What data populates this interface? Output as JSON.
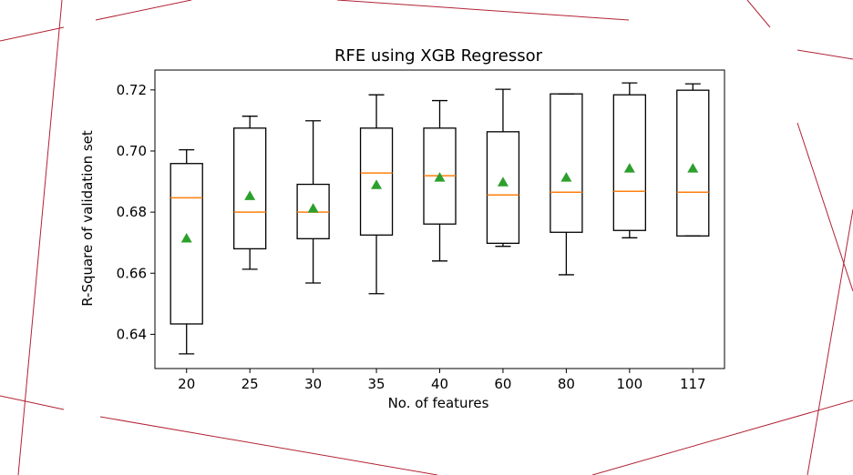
{
  "colors": {
    "decor_lines": "#b22234",
    "box_edge": "#000000",
    "median": "#ff7f0e",
    "mean_marker": "#2ca02c"
  },
  "chart_data": {
    "type": "boxplot",
    "title": "RFE using XGB Regressor",
    "xlabel": "No. of features",
    "ylabel": "R-Square of validation set",
    "ylim": [
      0.6288,
      0.7265
    ],
    "yticks": [
      0.64,
      0.66,
      0.68,
      0.7,
      0.72
    ],
    "ytick_labels": [
      "0.64",
      "0.66",
      "0.68",
      "0.70",
      "0.72"
    ],
    "categories": [
      "20",
      "25",
      "30",
      "35",
      "40",
      "60",
      "80",
      "100",
      "117"
    ],
    "mean_marker": "triangle",
    "boxes": [
      {
        "category": "20",
        "whisker_low": 0.6336,
        "q1": 0.6434,
        "median": 0.6847,
        "q3": 0.6959,
        "whisker_high": 0.7004,
        "mean": 0.6714
      },
      {
        "category": "25",
        "whisker_low": 0.6613,
        "q1": 0.668,
        "median": 0.68,
        "q3": 0.7075,
        "whisker_high": 0.7114,
        "mean": 0.6853
      },
      {
        "category": "30",
        "whisker_low": 0.6568,
        "q1": 0.6713,
        "median": 0.68,
        "q3": 0.6891,
        "whisker_high": 0.7099,
        "mean": 0.6812
      },
      {
        "category": "35",
        "whisker_low": 0.6533,
        "q1": 0.6725,
        "median": 0.6928,
        "q3": 0.7075,
        "whisker_high": 0.7184,
        "mean": 0.6889
      },
      {
        "category": "40",
        "whisker_low": 0.664,
        "q1": 0.6761,
        "median": 0.6919,
        "q3": 0.7075,
        "whisker_high": 0.7165,
        "mean": 0.6913
      },
      {
        "category": "60",
        "whisker_low": 0.6688,
        "q1": 0.6698,
        "median": 0.6856,
        "q3": 0.7063,
        "whisker_high": 0.7202,
        "mean": 0.6898
      },
      {
        "category": "80",
        "whisker_low": 0.6595,
        "q1": 0.6734,
        "median": 0.6865,
        "q3": 0.7187,
        "whisker_high": 0.7187,
        "mean": 0.6913
      },
      {
        "category": "100",
        "whisker_low": 0.6716,
        "q1": 0.674,
        "median": 0.6868,
        "q3": 0.7184,
        "whisker_high": 0.7223,
        "mean": 0.6943
      },
      {
        "category": "117",
        "whisker_low": 0.6722,
        "q1": 0.6722,
        "median": 0.6865,
        "q3": 0.7199,
        "whisker_high": 0.722,
        "mean": 0.6943
      }
    ]
  }
}
